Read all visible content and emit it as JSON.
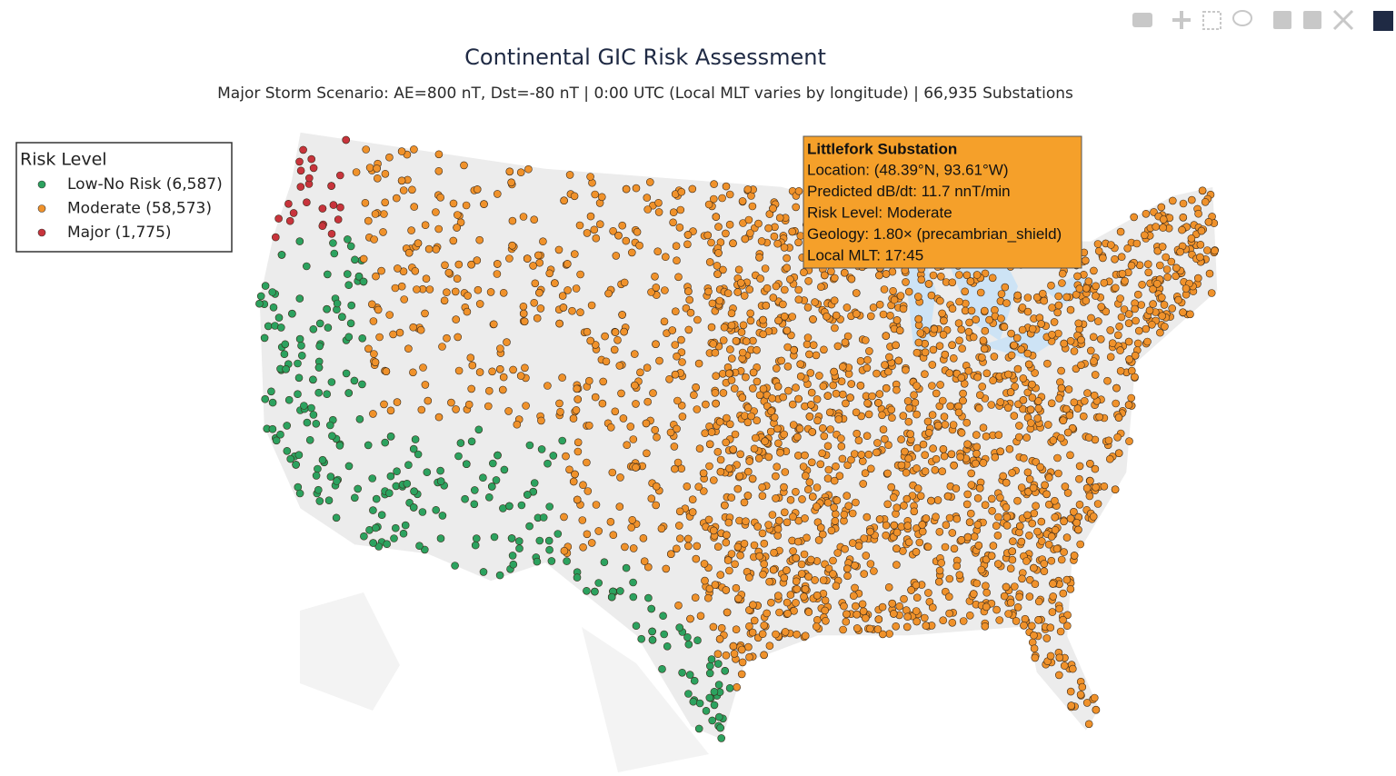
{
  "title": "Continental GIC Risk Assessment",
  "subtitle": "Major Storm Scenario: AE=800 nT, Dst=-80 nT | 0:00 UTC (Local MLT varies by longitude) | 66,935  Substations",
  "legend": {
    "title": "Risk Level",
    "items": [
      {
        "label": "Low-No Risk (6,587)",
        "color": "#2ca25f"
      },
      {
        "label": "Moderate (58,573)",
        "color": "#f0922b"
      },
      {
        "label": "Major (1,775)",
        "color": "#c8343c"
      }
    ]
  },
  "tooltip": {
    "title": "Littlefork Substation",
    "lines": [
      "Location: (48.39°N, 93.61°W)",
      "Predicted dB/dt: 11.7 nnT/min",
      "Risk Level: Moderate",
      "Geology: 1.80× (precambrian_shield)",
      "Local MLT: 17:45"
    ]
  }
}
